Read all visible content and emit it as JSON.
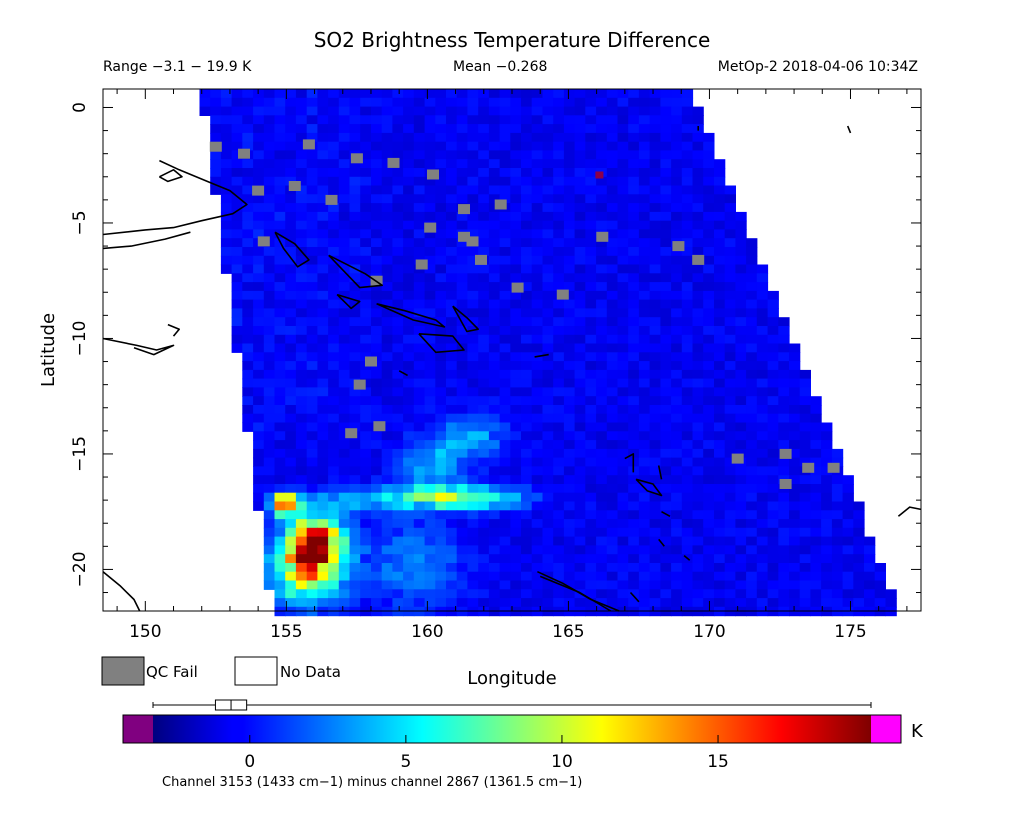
{
  "chart_data": {
    "type": "heatmap",
    "title": "SO2 Brightness Temperature Difference",
    "header": {
      "range": "Range −3.1 − 19.9 K",
      "mean": "Mean −0.268",
      "satellite_time": "MetOp-2 2018-04-06 10:34Z"
    },
    "xlabel": "Longitude",
    "ylabel": "Latitude",
    "xlim": [
      148.5,
      177.5
    ],
    "ylim": [
      -21.8,
      0.8
    ],
    "x_ticks": [
      150,
      155,
      160,
      165,
      170,
      175
    ],
    "y_ticks": [
      0,
      -5,
      -10,
      -15,
      -20
    ],
    "swath": {
      "left_top_lon": 152.0,
      "left_bottom_lon": 154.5,
      "right_top_lon": 169.3,
      "right_bottom_lon": 176.8
    },
    "legend": {
      "qc_fail": "QC Fail",
      "no_data": "No Data"
    },
    "colorbar": {
      "min": -3.1,
      "max": 19.9,
      "unit": "K",
      "ticks": [
        0,
        5,
        10,
        15
      ],
      "below_range_color": "#800080",
      "above_range_color": "#ff00ff",
      "box_stats": [
        -3.1,
        -1.1,
        -0.6,
        -0.1,
        19.9
      ]
    },
    "footnote": "Channel 3153 (1433 cm−1) minus channel 2867 (1361.5 cm−1)",
    "plumes": [
      {
        "lon": 156.0,
        "lat": -18.9,
        "peak": 19.0,
        "slon": 0.7,
        "slat": 0.8
      },
      {
        "lon": 155.0,
        "lat": -17.2,
        "peak": 18.0,
        "slon": 0.35,
        "slat": 0.3
      },
      {
        "lon": 155.7,
        "lat": -20.3,
        "peak": 9.0,
        "slon": 0.9,
        "slat": 0.9
      },
      {
        "lon": 161.3,
        "lat": -16.9,
        "peak": 8.0,
        "slon": 1.4,
        "slat": 0.35
      },
      {
        "lon": 160.3,
        "lat": -15.6,
        "peak": 4.5,
        "slon": 0.8,
        "slat": 0.8
      },
      {
        "lon": 161.6,
        "lat": -14.2,
        "peak": 3.5,
        "slon": 0.9,
        "slat": 0.6
      },
      {
        "lon": 158.0,
        "lat": -17.0,
        "peak": 4.5,
        "slon": 1.5,
        "slat": 0.35
      },
      {
        "lon": 159.5,
        "lat": -19.8,
        "peak": 3.0,
        "slon": 1.2,
        "slat": 1.3
      }
    ],
    "qc_fail_points": [
      [
        152.5,
        -1.7
      ],
      [
        153.5,
        -2.0
      ],
      [
        155.8,
        -1.6
      ],
      [
        157.5,
        -2.2
      ],
      [
        158.8,
        -2.4
      ],
      [
        155.3,
        -3.4
      ],
      [
        154.0,
        -3.6
      ],
      [
        156.6,
        -4.0
      ],
      [
        161.3,
        -4.4
      ],
      [
        162.6,
        -4.2
      ],
      [
        160.1,
        -5.2
      ],
      [
        161.6,
        -5.8
      ],
      [
        166.2,
        -5.6
      ],
      [
        168.9,
        -6.0
      ],
      [
        169.6,
        -6.6
      ],
      [
        154.2,
        -5.8
      ],
      [
        158.2,
        -7.5
      ],
      [
        159.8,
        -6.8
      ],
      [
        161.9,
        -6.6
      ],
      [
        163.2,
        -7.8
      ],
      [
        164.8,
        -8.1
      ],
      [
        158.0,
        -11.0
      ],
      [
        157.6,
        -12.0
      ],
      [
        158.3,
        -13.8
      ],
      [
        157.3,
        -14.1
      ],
      [
        171.0,
        -15.2
      ],
      [
        172.7,
        -15.0
      ],
      [
        173.5,
        -15.6
      ],
      [
        174.4,
        -15.6
      ],
      [
        172.7,
        -16.3
      ],
      [
        161.3,
        -5.6
      ],
      [
        160.2,
        -2.9
      ]
    ],
    "hot_pixels": [
      [
        166.1,
        -2.9
      ]
    ],
    "coastlines": [
      [
        [
          148.5,
          -5.5
        ],
        [
          150.0,
          -5.3
        ],
        [
          151.0,
          -5.2
        ],
        [
          152.0,
          -4.9
        ],
        [
          153.1,
          -4.6
        ],
        [
          153.6,
          -4.2
        ],
        [
          153.0,
          -3.6
        ],
        [
          152.4,
          -3.3
        ],
        [
          151.2,
          -2.7
        ],
        [
          150.5,
          -2.3
        ]
      ],
      [
        [
          148.5,
          -6.1
        ],
        [
          149.5,
          -6.0
        ],
        [
          150.7,
          -5.7
        ],
        [
          151.6,
          -5.4
        ]
      ],
      [
        [
          150.5,
          -3.0
        ],
        [
          151.0,
          -2.7
        ],
        [
          151.3,
          -3.0
        ],
        [
          150.8,
          -3.2
        ],
        [
          150.5,
          -3.0
        ]
      ],
      [
        [
          154.6,
          -5.4
        ],
        [
          155.3,
          -5.9
        ],
        [
          155.8,
          -6.6
        ],
        [
          155.4,
          -6.9
        ],
        [
          154.9,
          -6.1
        ],
        [
          154.6,
          -5.4
        ]
      ],
      [
        [
          156.5,
          -6.4
        ],
        [
          157.8,
          -7.2
        ],
        [
          158.4,
          -7.7
        ],
        [
          157.6,
          -7.8
        ],
        [
          156.5,
          -6.4
        ]
      ],
      [
        [
          156.8,
          -8.1
        ],
        [
          157.6,
          -8.4
        ],
        [
          157.3,
          -8.7
        ],
        [
          156.8,
          -8.1
        ]
      ],
      [
        [
          158.2,
          -8.5
        ],
        [
          159.2,
          -8.8
        ],
        [
          160.3,
          -9.2
        ],
        [
          160.6,
          -9.5
        ],
        [
          159.5,
          -9.2
        ],
        [
          158.2,
          -8.5
        ]
      ],
      [
        [
          159.7,
          -9.8
        ],
        [
          160.9,
          -9.9
        ],
        [
          161.3,
          -10.5
        ],
        [
          160.3,
          -10.6
        ],
        [
          159.7,
          -9.8
        ]
      ],
      [
        [
          160.9,
          -8.6
        ],
        [
          161.4,
          -9.1
        ],
        [
          161.8,
          -9.6
        ],
        [
          161.4,
          -9.7
        ],
        [
          160.9,
          -8.6
        ]
      ],
      [
        [
          148.5,
          -10.0
        ],
        [
          149.7,
          -10.3
        ],
        [
          150.4,
          -10.5
        ],
        [
          151.0,
          -10.3
        ],
        [
          150.3,
          -10.7
        ],
        [
          149.6,
          -10.4
        ]
      ],
      [
        [
          150.8,
          -9.4
        ],
        [
          151.2,
          -9.6
        ],
        [
          151.0,
          -9.9
        ]
      ],
      [
        [
          167.0,
          -15.2
        ],
        [
          167.3,
          -15.0
        ],
        [
          167.3,
          -15.8
        ]
      ],
      [
        [
          167.4,
          -16.1
        ],
        [
          168.0,
          -16.3
        ],
        [
          168.3,
          -16.8
        ],
        [
          167.8,
          -16.6
        ],
        [
          167.4,
          -16.1
        ]
      ],
      [
        [
          168.2,
          -15.5
        ],
        [
          168.3,
          -16.1
        ]
      ],
      [
        [
          168.3,
          -17.5
        ],
        [
          168.6,
          -17.7
        ]
      ],
      [
        [
          168.2,
          -18.7
        ],
        [
          168.4,
          -19.0
        ]
      ],
      [
        [
          169.1,
          -19.4
        ],
        [
          169.3,
          -19.6
        ]
      ],
      [
        [
          163.9,
          -20.1
        ],
        [
          164.8,
          -20.6
        ],
        [
          165.8,
          -21.3
        ],
        [
          166.8,
          -21.8
        ]
      ],
      [
        [
          164.0,
          -20.3
        ],
        [
          165.4,
          -21.0
        ],
        [
          166.5,
          -21.8
        ]
      ],
      [
        [
          167.2,
          -21.0
        ],
        [
          167.5,
          -21.4
        ]
      ],
      [
        [
          176.7,
          -17.7
        ],
        [
          177.1,
          -17.3
        ],
        [
          177.5,
          -17.4
        ]
      ],
      [
        [
          148.5,
          -20.1
        ],
        [
          149.1,
          -20.7
        ],
        [
          149.6,
          -21.3
        ],
        [
          149.8,
          -21.8
        ]
      ],
      [
        [
          169.6,
          -0.8
        ],
        [
          169.6,
          -1.0
        ]
      ],
      [
        [
          174.9,
          -0.8
        ],
        [
          175.0,
          -1.1
        ]
      ],
      [
        [
          163.8,
          -10.8
        ],
        [
          164.3,
          -10.7
        ]
      ],
      [
        [
          159.0,
          -11.4
        ],
        [
          159.3,
          -11.6
        ]
      ]
    ]
  }
}
